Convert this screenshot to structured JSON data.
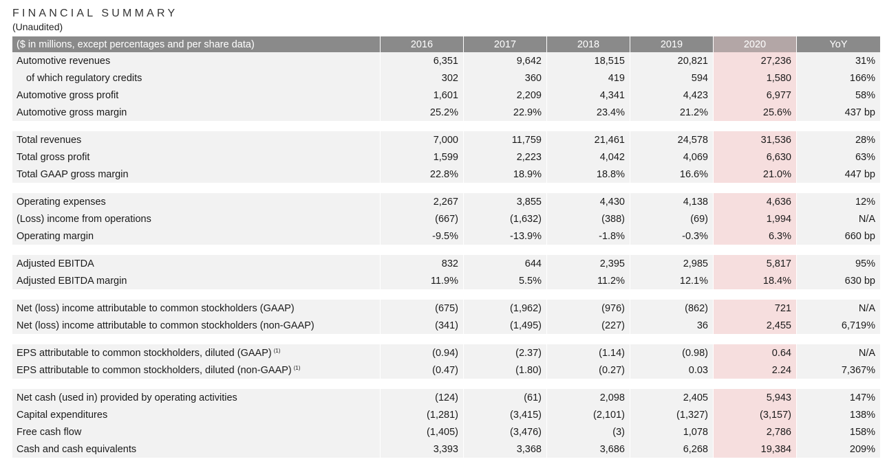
{
  "header": {
    "title": "FINANCIAL SUMMARY",
    "subtitle": "(Unaudited)"
  },
  "table": {
    "header_label": "($ in millions, except percentages and per share data)",
    "years": [
      "2016",
      "2017",
      "2018",
      "2019",
      "2020"
    ],
    "yoy_label": "YoY",
    "highlight_color": "#f6dede",
    "header_color": "#8a8a8a",
    "groups": [
      {
        "rows": [
          {
            "label": "Automotive revenues",
            "values": [
              "6,351",
              "9,642",
              "18,515",
              "20,821",
              "27,236"
            ],
            "yoy": "31%"
          },
          {
            "label": "of which regulatory credits",
            "indent": true,
            "values": [
              "302",
              "360",
              "419",
              "594",
              "1,580"
            ],
            "yoy": "166%"
          },
          {
            "label": "Automotive gross profit",
            "values": [
              "1,601",
              "2,209",
              "4,341",
              "4,423",
              "6,977"
            ],
            "yoy": "58%"
          },
          {
            "label": "Automotive gross margin",
            "values": [
              "25.2%",
              "22.9%",
              "23.4%",
              "21.2%",
              "25.6%"
            ],
            "yoy": "437 bp"
          }
        ]
      },
      {
        "rows": [
          {
            "label": "Total revenues",
            "values": [
              "7,000",
              "11,759",
              "21,461",
              "24,578",
              "31,536"
            ],
            "yoy": "28%"
          },
          {
            "label": "Total gross profit",
            "values": [
              "1,599",
              "2,223",
              "4,042",
              "4,069",
              "6,630"
            ],
            "yoy": "63%"
          },
          {
            "label": "Total GAAP gross margin",
            "values": [
              "22.8%",
              "18.9%",
              "18.8%",
              "16.6%",
              "21.0%"
            ],
            "yoy": "447 bp"
          }
        ]
      },
      {
        "rows": [
          {
            "label": "Operating expenses",
            "values": [
              "2,267",
              "3,855",
              "4,430",
              "4,138",
              "4,636"
            ],
            "yoy": "12%"
          },
          {
            "label": "(Loss) income from operations",
            "values": [
              "(667)",
              "(1,632)",
              "(388)",
              "(69)",
              "1,994"
            ],
            "yoy": "N/A"
          },
          {
            "label": "Operating margin",
            "values": [
              "-9.5%",
              "-13.9%",
              "-1.8%",
              "-0.3%",
              "6.3%"
            ],
            "yoy": "660 bp"
          }
        ]
      },
      {
        "rows": [
          {
            "label": "Adjusted EBITDA",
            "values": [
              "832",
              "644",
              "2,395",
              "2,985",
              "5,817"
            ],
            "yoy": "95%"
          },
          {
            "label": "Adjusted EBITDA margin",
            "values": [
              "11.9%",
              "5.5%",
              "11.2%",
              "12.1%",
              "18.4%"
            ],
            "yoy": "630 bp"
          }
        ]
      },
      {
        "rows": [
          {
            "label": "Net (loss) income attributable to common stockholders (GAAP)",
            "values": [
              "(675)",
              "(1,962)",
              "(976)",
              "(862)",
              "721"
            ],
            "yoy": "N/A"
          },
          {
            "label": "Net (loss) income attributable to common stockholders (non-GAAP)",
            "values": [
              "(341)",
              "(1,495)",
              "(227)",
              "36",
              "2,455"
            ],
            "yoy": "6,719%"
          }
        ]
      },
      {
        "rows": [
          {
            "label": "EPS attributable to common stockholders, diluted (GAAP)",
            "note": "(1)",
            "values": [
              "(0.94)",
              "(2.37)",
              "(1.14)",
              "(0.98)",
              "0.64"
            ],
            "yoy": "N/A"
          },
          {
            "label": "EPS attributable to common stockholders, diluted (non-GAAP)",
            "note": "(1)",
            "values": [
              "(0.47)",
              "(1.80)",
              "(0.27)",
              "0.03",
              "2.24"
            ],
            "yoy": "7,367%"
          }
        ]
      },
      {
        "rows": [
          {
            "label": "Net cash (used in) provided by operating activities",
            "values": [
              "(124)",
              "(61)",
              "2,098",
              "2,405",
              "5,943"
            ],
            "yoy": "147%"
          },
          {
            "label": "Capital expenditures",
            "values": [
              "(1,281)",
              "(3,415)",
              "(2,101)",
              "(1,327)",
              "(3,157)"
            ],
            "yoy": "138%"
          },
          {
            "label": "Free cash flow",
            "values": [
              "(1,405)",
              "(3,476)",
              "(3)",
              "1,078",
              "2,786"
            ],
            "yoy": "158%"
          },
          {
            "label": "Cash and cash equivalents",
            "values": [
              "3,393",
              "3,368",
              "3,686",
              "6,268",
              "19,384"
            ],
            "yoy": "209%"
          }
        ]
      }
    ]
  }
}
